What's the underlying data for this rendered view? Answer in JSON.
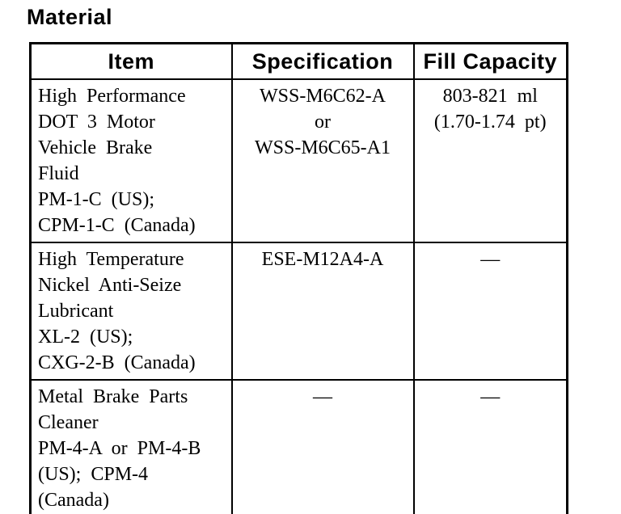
{
  "page": {
    "title": "Material"
  },
  "colors": {
    "text": "#000000",
    "background": "#ffffff",
    "border": "#000000"
  },
  "table": {
    "columns": [
      "Item",
      "Specification",
      "Fill Capacity"
    ],
    "rows": [
      {
        "item": "High Performance\nDOT 3 Motor\nVehicle Brake\nFluid\nPM-1-C (US);\nCPM-1-C (Canada)",
        "specification": "WSS-M6C62-A\nor\nWSS-M6C65-A1",
        "fill_capacity": "803-821 ml\n(1.70-1.74 pt)"
      },
      {
        "item": "High Temperature\nNickel Anti-Seize\nLubricant\nXL-2 (US);\nCXG-2-B (Canada)",
        "specification": "ESE-M12A4-A",
        "fill_capacity": "—"
      },
      {
        "item": "Metal Brake Parts\nCleaner\nPM-4-A or PM-4-B\n(US); CPM-4\n(Canada)",
        "specification": "—",
        "fill_capacity": "—"
      }
    ]
  }
}
